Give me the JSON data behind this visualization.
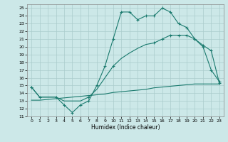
{
  "title": "",
  "xlabel": "Humidex (Indice chaleur)",
  "bg_color": "#cce8e8",
  "line_color": "#1a7a6e",
  "grid_color": "#aacccc",
  "xlim": [
    -0.5,
    23.5
  ],
  "ylim": [
    11,
    25.5
  ],
  "yticks": [
    11,
    12,
    13,
    14,
    15,
    16,
    17,
    18,
    19,
    20,
    21,
    22,
    23,
    24,
    25
  ],
  "xticks": [
    0,
    1,
    2,
    3,
    4,
    5,
    6,
    7,
    8,
    9,
    10,
    11,
    12,
    13,
    14,
    15,
    16,
    17,
    18,
    19,
    20,
    21,
    22,
    23
  ],
  "line1_x": [
    0,
    1,
    3,
    4,
    5,
    6,
    7,
    8,
    9,
    10,
    11,
    12,
    13,
    14,
    15,
    16,
    17,
    18,
    19,
    20,
    21,
    22,
    23
  ],
  "line1_y": [
    14.8,
    13.5,
    13.5,
    12.5,
    11.5,
    12.5,
    13.0,
    15.0,
    17.5,
    21.0,
    24.5,
    24.5,
    23.5,
    24.0,
    24.0,
    25.0,
    24.5,
    23.0,
    22.5,
    21.0,
    20.0,
    17.0,
    15.5
  ],
  "line1_markers_x": [
    0,
    1,
    3,
    4,
    5,
    6,
    7,
    8,
    9,
    10,
    11,
    12,
    13,
    14,
    15,
    16,
    17,
    18,
    19,
    20,
    21,
    22,
    23
  ],
  "line1_markers_y": [
    14.8,
    13.5,
    13.5,
    12.5,
    11.5,
    12.5,
    13.0,
    15.0,
    17.5,
    21.0,
    24.5,
    24.5,
    23.5,
    24.0,
    24.0,
    25.0,
    24.5,
    23.0,
    22.5,
    21.0,
    20.0,
    17.0,
    15.5
  ],
  "line2_x": [
    0,
    1,
    2,
    3,
    4,
    5,
    6,
    7,
    8,
    9,
    10,
    11,
    12,
    13,
    14,
    15,
    16,
    17,
    18,
    19,
    20,
    21,
    22,
    23
  ],
  "line2_y": [
    13.1,
    13.1,
    13.2,
    13.3,
    13.4,
    13.5,
    13.6,
    13.7,
    13.8,
    13.9,
    14.1,
    14.2,
    14.3,
    14.4,
    14.5,
    14.7,
    14.8,
    14.9,
    15.0,
    15.1,
    15.2,
    15.2,
    15.2,
    15.2
  ],
  "line3_x": [
    0,
    1,
    2,
    3,
    4,
    5,
    6,
    7,
    8,
    9,
    10,
    11,
    12,
    13,
    14,
    15,
    16,
    17,
    18,
    19,
    20,
    21,
    22,
    23
  ],
  "line3_y": [
    14.8,
    13.5,
    13.5,
    13.5,
    13.0,
    13.0,
    13.0,
    13.5,
    14.5,
    16.0,
    17.5,
    18.5,
    19.2,
    19.8,
    20.3,
    20.5,
    21.0,
    21.5,
    21.5,
    21.5,
    21.0,
    20.2,
    19.5,
    15.3
  ],
  "line3_markers_x": [
    0,
    7,
    10,
    15,
    16,
    17,
    18,
    19,
    20,
    21,
    22,
    23
  ],
  "line3_markers_y": [
    14.8,
    13.5,
    17.5,
    20.5,
    21.0,
    21.5,
    21.5,
    21.5,
    21.0,
    20.2,
    19.5,
    15.3
  ]
}
